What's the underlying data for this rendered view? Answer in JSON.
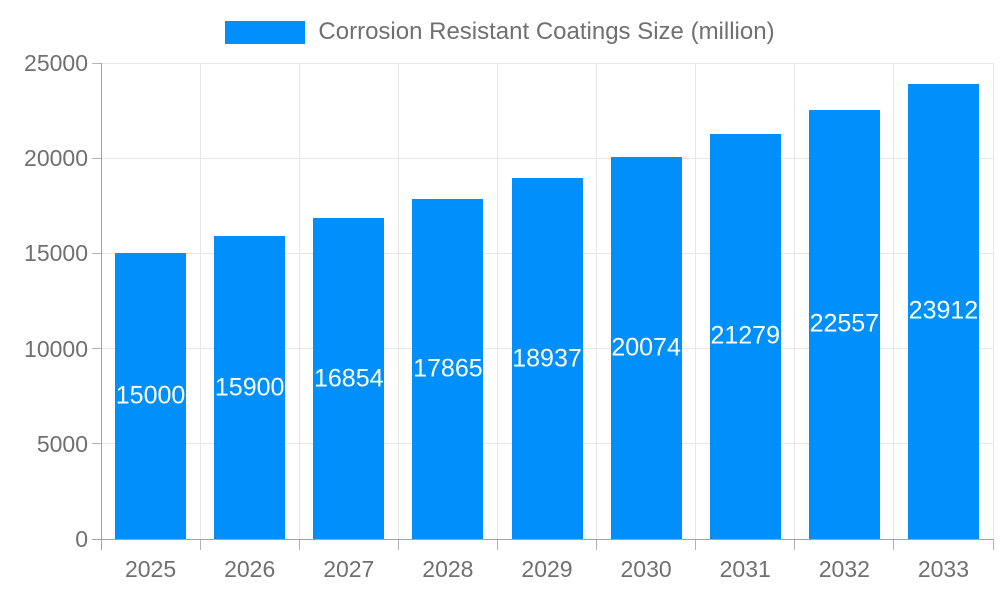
{
  "chart_data": {
    "type": "bar",
    "categories": [
      "2025",
      "2026",
      "2027",
      "2028",
      "2029",
      "2030",
      "2031",
      "2032",
      "2033"
    ],
    "values": [
      15000,
      15900,
      16854,
      17865,
      18937,
      20074,
      21279,
      22557,
      23912
    ],
    "series_name": "Corrosion Resistant Coatings Size (million)",
    "title": "",
    "xlabel": "",
    "ylabel": "",
    "ylim": [
      0,
      25000
    ],
    "yticks": [
      0,
      5000,
      10000,
      15000,
      20000,
      25000
    ],
    "ytick_labels": [
      "0",
      "5000",
      "10000",
      "15000",
      "20000",
      "25000"
    ],
    "grid": true,
    "legend_position": "top",
    "colors": {
      "bar": "#008FFB",
      "bar_label": "#FFFFFF",
      "axis_text": "#707070",
      "grid_line": "#E7E7E7",
      "axis_line": "#A3A3A3",
      "tick": "#B3B3B3",
      "background": "#FFFFFF"
    }
  }
}
